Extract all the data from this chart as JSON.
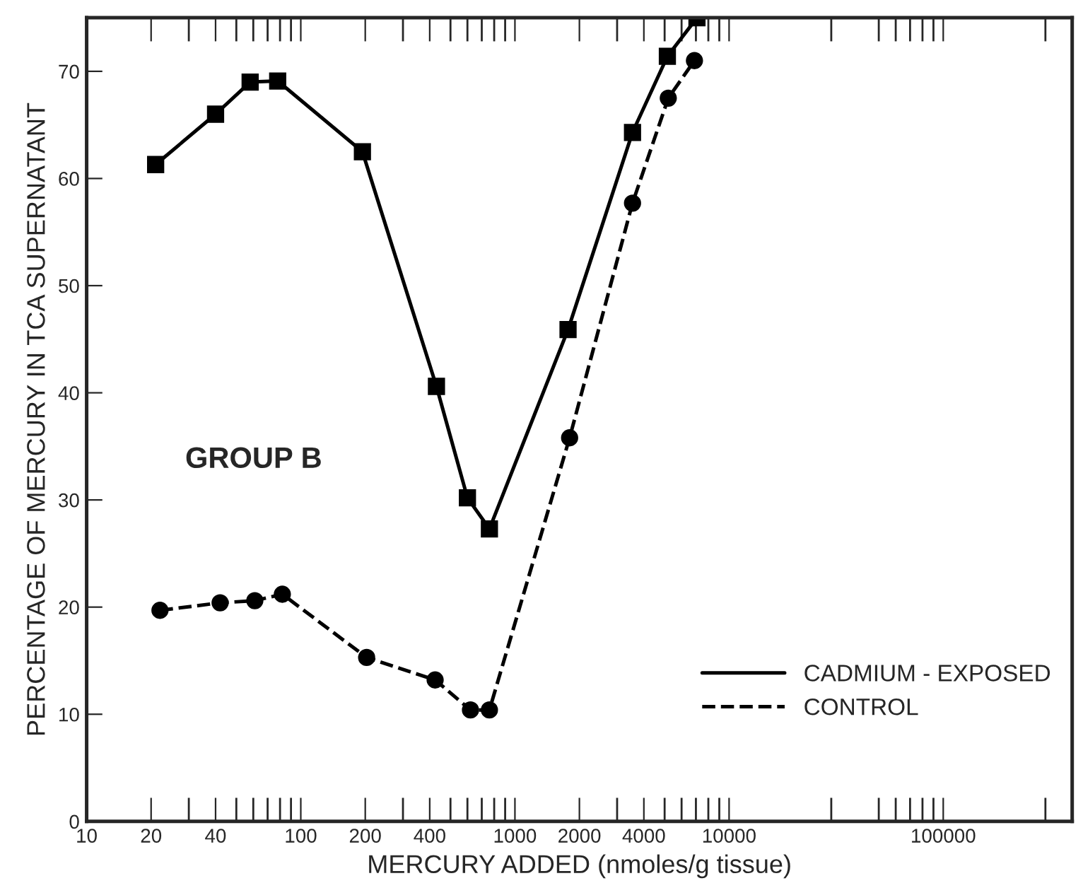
{
  "chart_data": {
    "type": "line",
    "xlabel": "MERCURY ADDED (nmoles/g tissue)",
    "ylabel": "PERCENTAGE OF MERCURY IN TCA SUPERNATANT",
    "log": "x",
    "xlim": [
      10,
      400000
    ],
    "ylim": [
      0,
      75
    ],
    "xticks": [
      10,
      20,
      40,
      100,
      200,
      400,
      1000,
      2000,
      4000,
      10000,
      100000
    ],
    "yticks": [
      0,
      10,
      20,
      30,
      40,
      50,
      60,
      70
    ],
    "grid": false,
    "legend": "bottom right",
    "annotations": [
      "GROUP B"
    ],
    "series": [
      {
        "name": "CADMIUM - EXPOSED",
        "color": "#000000",
        "marker": "square",
        "line_style": "solid",
        "x": [
          21,
          40,
          58,
          78,
          194,
          430,
          600,
          760,
          1770,
          3540,
          5150,
          7080
        ],
        "values": [
          61.3,
          66.0,
          69.0,
          69.1,
          62.5,
          40.6,
          30.2,
          27.3,
          45.9,
          64.3,
          71.4,
          75.0
        ]
      },
      {
        "name": "CONTROL",
        "color": "#000000",
        "marker": "circle",
        "line_style": "dashed",
        "x": [
          22,
          42,
          61,
          82,
          203,
          424,
          620,
          760,
          1800,
          3540,
          5200,
          6890
        ],
        "values": [
          19.7,
          20.4,
          20.6,
          21.2,
          15.3,
          13.2,
          10.4,
          10.4,
          35.8,
          57.7,
          67.5,
          71.0
        ]
      }
    ]
  }
}
